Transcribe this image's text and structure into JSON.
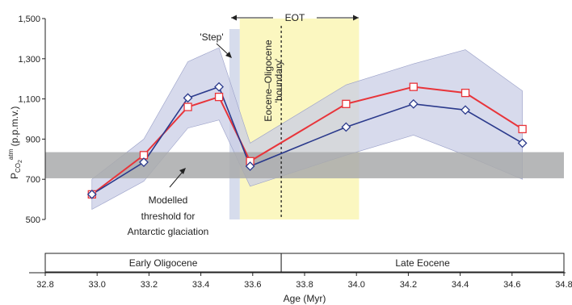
{
  "chart_data": {
    "type": "line",
    "xlabel": "Age (Myr)",
    "ylabel_main": "P",
    "ylabel_sub": "CO",
    "ylabel_sub2": "2",
    "ylabel_sup": "atm",
    "ylabel_unit": " (p.p.m.v.)",
    "xlim": [
      32.8,
      34.8
    ],
    "ylim": [
      500,
      1500
    ],
    "x_ticks": [
      "32.8",
      "33.0",
      "33.2",
      "33.4",
      "33.6",
      "33.8",
      "34.0",
      "34.2",
      "34.4",
      "34.6",
      "34.8"
    ],
    "y_ticks": [
      "500",
      "700",
      "900",
      "1,100",
      "1,300",
      "1,500"
    ],
    "colors": {
      "red_series": "#e8343a",
      "blue_series": "#2b3a8c",
      "band_fill": "#c9cde6",
      "eot_fill": "#fbf7c0",
      "step_fill": "#d6dcec",
      "threshold_fill": "#a9aaab"
    },
    "series": [
      {
        "marker": "square",
        "x": [
          32.98,
          33.18,
          33.35,
          33.47,
          33.59,
          33.96,
          34.22,
          34.42,
          34.64
        ],
        "values": [
          625,
          820,
          1060,
          1110,
          790,
          1075,
          1160,
          1130,
          950
        ]
      },
      {
        "marker": "diamond",
        "x": [
          32.98,
          33.18,
          33.35,
          33.47,
          33.59,
          33.96,
          34.22,
          34.42,
          34.64
        ],
        "values": [
          625,
          785,
          1105,
          1160,
          765,
          960,
          1075,
          1045,
          880
        ]
      }
    ],
    "uncertainty_band": {
      "x": [
        32.98,
        33.18,
        33.35,
        33.47,
        33.59,
        33.96,
        34.22,
        34.42,
        34.64
      ],
      "upper": [
        700,
        900,
        1285,
        1355,
        880,
        1170,
        1275,
        1345,
        1140
      ],
      "lower": [
        550,
        690,
        955,
        995,
        665,
        820,
        920,
        820,
        700
      ]
    },
    "threshold_band": {
      "y": [
        705,
        835
      ]
    },
    "eot_range": [
      33.55,
      34.01
    ],
    "step_range": [
      33.51,
      33.55
    ],
    "boundary_x": 33.71,
    "eot_label": "EOT",
    "step_label": "'Step'",
    "boundary_label_1": "Eocene–Oligocene",
    "boundary_label_2": "'boundary'",
    "threshold_label": [
      "Modelled",
      "threshold for",
      "Antarctic glaciation"
    ],
    "epochs": [
      {
        "label": "Early Oligocene",
        "x": [
          32.8,
          33.71
        ]
      },
      {
        "label": "Late Eocene",
        "x": [
          33.71,
          34.8
        ]
      }
    ]
  }
}
